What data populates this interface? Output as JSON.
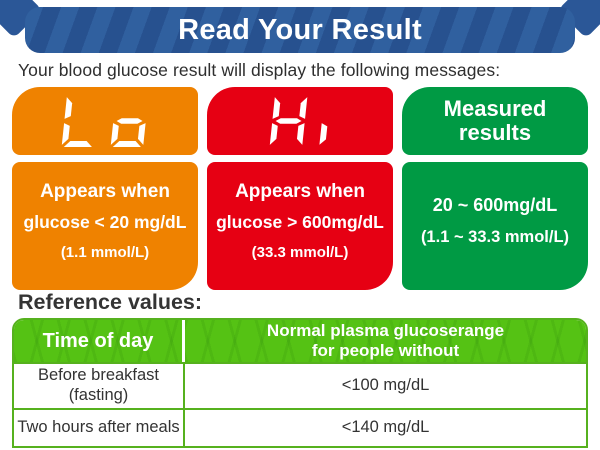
{
  "page": {
    "title": "Read Your Result",
    "subtitle": "Your blood glucose result will display the following messages:"
  },
  "cards": [
    {
      "display": "Lo",
      "color": "#EF8200",
      "description_lines": [
        "Appears when",
        "glucose < 20 mg/dL",
        "(1.1 mmol/L)"
      ]
    },
    {
      "display": "Hi",
      "color": "#E60013",
      "description_lines": [
        "Appears when",
        "glucose > 600mg/dL",
        "(33.3 mmol/L)"
      ]
    },
    {
      "display": "Measured results",
      "color": "#009A44",
      "description_lines": [
        "20 ~ 600mg/dL",
        "(1.1 ~ 33.3 mmol/L)"
      ]
    }
  ],
  "reference": {
    "heading": "Reference values:",
    "table": {
      "headers": [
        {
          "lines": [
            "Time of day",
            ""
          ]
        },
        {
          "lines": [
            "Normal plasma glucoserange",
            "for people without"
          ]
        }
      ],
      "rows": [
        {
          "time_lines": [
            "Before breakfast",
            "(fasting)"
          ],
          "value": "<100 mg/dL"
        },
        {
          "time_lines": [
            "Two hours after meals",
            ""
          ],
          "value": "<140 mg/dL"
        }
      ]
    }
  },
  "colors": {
    "banner_blue": "#2B5797",
    "lo_orange": "#EF8200",
    "hi_red": "#E60013",
    "measured_green": "#009A44",
    "table_header_green": "#55C214",
    "table_border_green": "#56B11E",
    "text_dark": "#333333"
  }
}
